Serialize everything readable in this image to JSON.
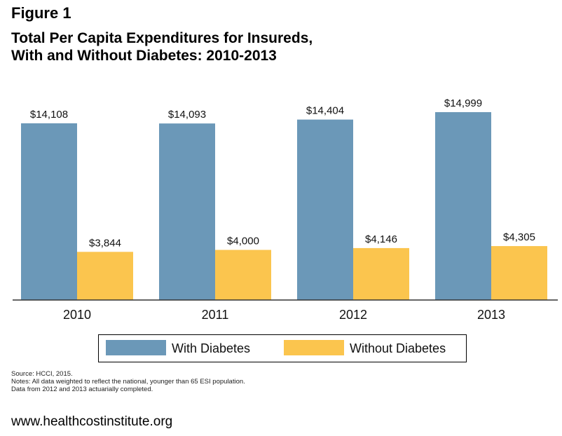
{
  "figure_label": "Figure 1",
  "title_line1": "Total Per Capita Expenditures for Insureds,",
  "title_line2": "With and Without Diabetes: 2010-2013",
  "chart_data": {
    "type": "bar",
    "title": "Total Per Capita Expenditures for Insureds, With and Without Diabetes: 2010-2013",
    "categories": [
      "2010",
      "2011",
      "2012",
      "2013"
    ],
    "series": [
      {
        "name": "With Diabetes",
        "color": "#6b98b8",
        "values": [
          14108,
          14093,
          14404,
          14999
        ],
        "labels": [
          "$14,108",
          "$14,093",
          "$14,404",
          "$14,999"
        ]
      },
      {
        "name": "Without Diabetes",
        "color": "#fbc54e",
        "values": [
          3844,
          4000,
          4146,
          4305
        ],
        "labels": [
          "$3,844",
          "$4,000",
          "$4,146",
          "$4,305"
        ]
      }
    ],
    "xlabel": "",
    "ylabel": "",
    "ylim": [
      0,
      15500
    ],
    "grid": false,
    "legend_position": "bottom"
  },
  "legend": {
    "with_label": "With Diabetes",
    "without_label": "Without Diabetes"
  },
  "footnotes": {
    "source": "Source: HCCI, 2015.",
    "notes": "Notes: All data weighted to reflect the national, younger than 65 ESI population.",
    "data_note": "Data from 2012 and 2013 actuarially completed."
  },
  "website": "www.healthcostinstitute.org"
}
